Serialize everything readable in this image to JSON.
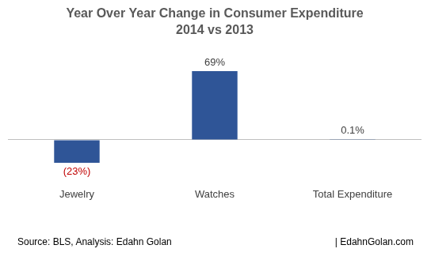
{
  "chart_data": {
    "type": "bar",
    "title": "Year Over Year Change in Consumer Expenditure",
    "subtitle": "2014 vs 2013",
    "categories": [
      "Jewelry",
      "Watches",
      "Total Expenditure"
    ],
    "values": [
      -23,
      69,
      0.1
    ],
    "value_labels": [
      "(23%)",
      "69%",
      "0.1%"
    ],
    "color": "#2f5597",
    "ylim": [
      -25,
      75
    ],
    "yticks": [
      -25,
      0,
      25,
      50,
      75
    ],
    "grid": false,
    "data_labels": true,
    "tick_labels": "x",
    "annotations": [
      "Source: BLS, Analysis: Edahn Golan",
      "| EdahnGolan.com"
    ]
  }
}
